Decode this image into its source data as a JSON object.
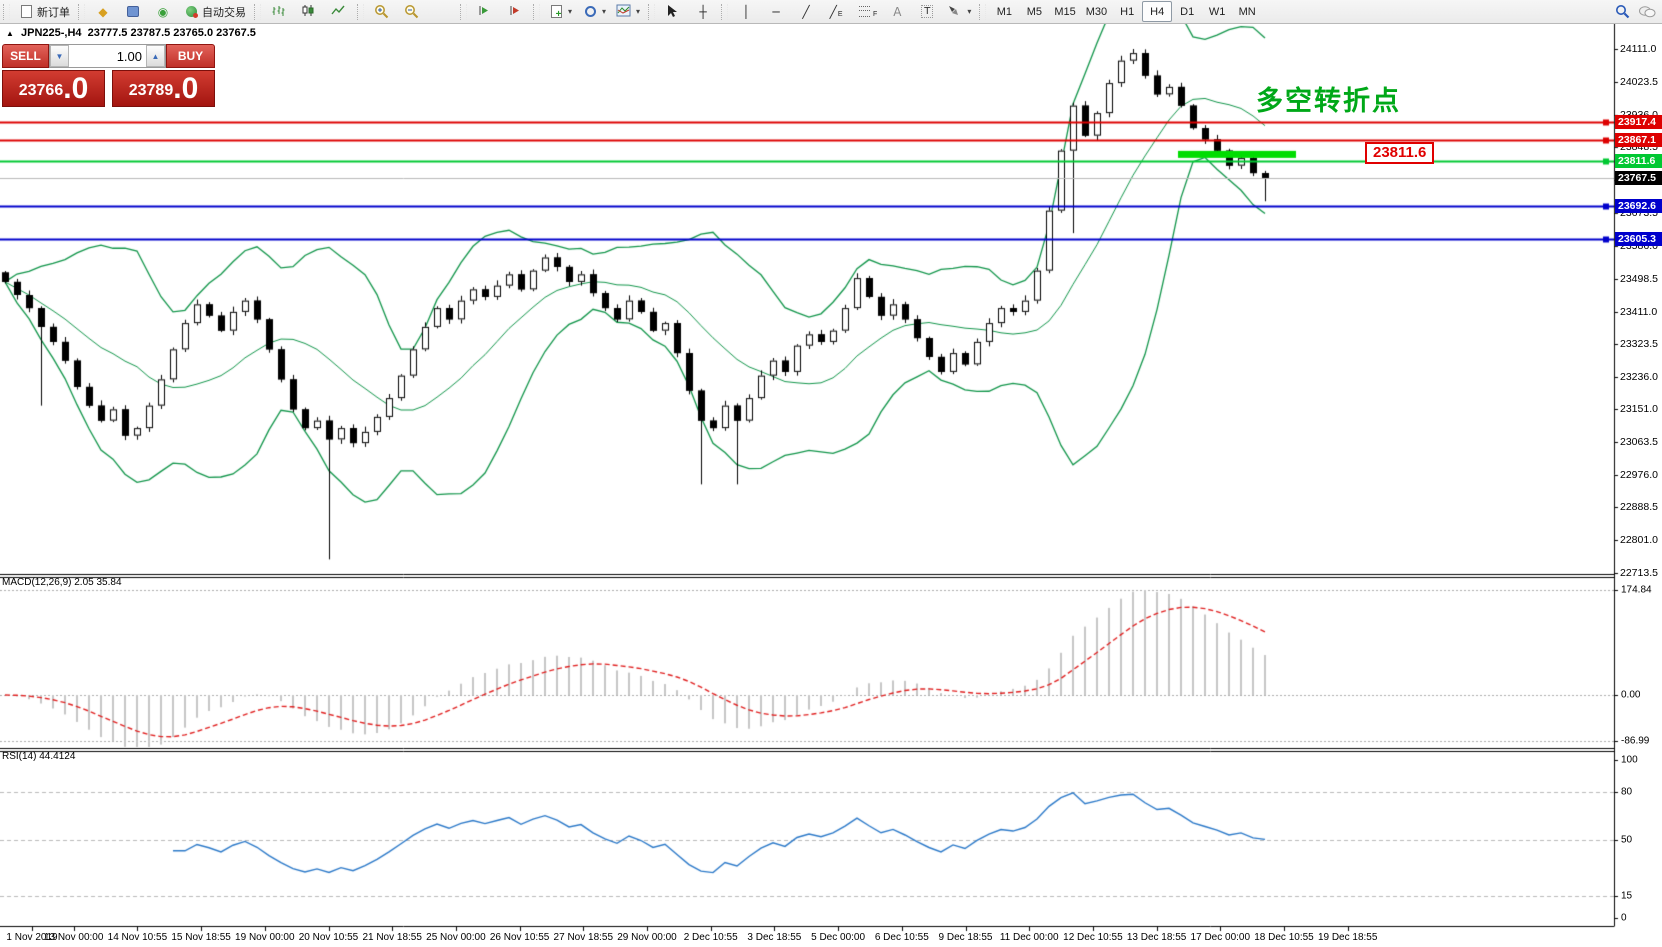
{
  "toolbar": {
    "new_order_label": "新订单",
    "autotrading_label": "自动交易",
    "timeframes": [
      "M1",
      "M5",
      "M15",
      "M30",
      "H1",
      "H4",
      "D1",
      "W1",
      "MN"
    ],
    "active_timeframe": "H4"
  },
  "one_click_panel": {
    "sell_label": "SELL",
    "buy_label": "BUY",
    "volume": "1.00",
    "sell_price_main": "23766",
    "sell_price_pips": ".0",
    "buy_price_main": "23789",
    "buy_price_pips": ".0"
  },
  "chart": {
    "title_symbol": "JPN225-,H4",
    "title_ohlc": "23777.5 23787.5 23765.0 23767.5",
    "annotation_text": "多空转折点",
    "annotation_color": "#00a818",
    "price_callout": "23811.6",
    "macd_label": "MACD(12,26,9) 2.05 35.84",
    "rsi_label": "RSI(14) 44.4124"
  },
  "chart_data": {
    "type": "candlestick",
    "symbol": "JPN225-",
    "timeframe": "H4",
    "current_ohlc": {
      "open": 23777.5,
      "high": 23787.5,
      "low": 23765.0,
      "close": 23767.5
    },
    "closes": [
      23490,
      23455,
      23420,
      23370,
      23330,
      23280,
      23210,
      23160,
      23120,
      23150,
      23080,
      23100,
      23160,
      23230,
      23310,
      23380,
      23430,
      23400,
      23360,
      23410,
      23440,
      23390,
      23310,
      23230,
      23150,
      23100,
      23120,
      23070,
      23100,
      23060,
      23090,
      23130,
      23180,
      23240,
      23310,
      23370,
      23420,
      23390,
      23440,
      23470,
      23450,
      23480,
      23510,
      23470,
      23520,
      23555,
      23530,
      23490,
      23510,
      23460,
      23420,
      23390,
      23440,
      23410,
      23360,
      23380,
      23300,
      23200,
      23120,
      23100,
      23160,
      23120,
      23180,
      23240,
      23280,
      23250,
      23320,
      23350,
      23330,
      23360,
      23420,
      23500,
      23450,
      23400,
      23430,
      23390,
      23340,
      23290,
      23250,
      23300,
      23270,
      23330,
      23380,
      23420,
      23410,
      23440,
      23520,
      23680,
      23840,
      23960,
      23880,
      23940,
      24020,
      24080,
      24100,
      24040,
      23990,
      24010,
      23960,
      23900,
      23870,
      23840,
      23800,
      23820,
      23780,
      23767.5
    ],
    "special_wicks": [
      {
        "i": 3,
        "low": 23160
      },
      {
        "i": 27,
        "low": 22750
      },
      {
        "i": 58,
        "low": 22950
      },
      {
        "i": 61,
        "low": 22950
      },
      {
        "i": 89,
        "low": 23620
      },
      {
        "i": 94,
        "high": 24111
      },
      {
        "i": 105,
        "low": 23705
      }
    ],
    "bollinger_color": "#0f9448",
    "y_axis_labels": [
      "24111.0",
      "24023.5",
      "23936.0",
      "23848.5",
      "23761.0",
      "23673.5",
      "23586.0",
      "23498.5",
      "23411.0",
      "23323.5",
      "23236.0",
      "23151.0",
      "23063.5",
      "22976.0",
      "22888.5",
      "22801.0",
      "22713.5"
    ],
    "x_axis_labels": [
      "1 Nov 2019",
      "13 Nov 00:00",
      "14 Nov 10:55",
      "15 Nov 18:55",
      "19 Nov 00:00",
      "20 Nov 10:55",
      "21 Nov 18:55",
      "25 Nov 00:00",
      "26 Nov 10:55",
      "27 Nov 18:55",
      "29 Nov 00:00",
      "2 Dec 10:55",
      "3 Dec 18:55",
      "5 Dec 00:00",
      "6 Dec 10:55",
      "9 Dec 18:55",
      "11 Dec 00:00",
      "12 Dec 10:55",
      "13 Dec 18:55",
      "17 Dec 00:00",
      "18 Dec 10:55",
      "19 Dec 18:55"
    ],
    "levels": [
      {
        "price": 23917.4,
        "label": "23917.4",
        "color": "#dd0000"
      },
      {
        "price": 23867.1,
        "label": "23867.1",
        "color": "#dd0000"
      },
      {
        "price": 23811.6,
        "label": "23811.6",
        "color": "#00c832"
      },
      {
        "price": 23767.5,
        "label": "23767.5",
        "color": "#000000",
        "current": true
      },
      {
        "price": 23692.6,
        "label": "23692.6",
        "color": "#0000cc"
      },
      {
        "price": 23605.3,
        "label": "23605.3",
        "color": "#0000cc"
      }
    ],
    "highlight_segment": {
      "price": 23830,
      "color": "#00dd00"
    },
    "macd": {
      "params": "12,26,9",
      "main_value": 2.05,
      "signal_value": 35.84,
      "axis_labels": [
        "174.84",
        "0.00",
        "-86.99"
      ],
      "axis_values": [
        174.84,
        0,
        -86.99
      ],
      "histogram_color": "#c6c6c6",
      "signal_color": "#e02020"
    },
    "rsi": {
      "period": 14,
      "value": 44.4124,
      "line_color": "#2a78c8",
      "axis_labels": [
        "100",
        "80",
        "50",
        "15",
        "0"
      ],
      "axis_values": [
        100,
        80,
        50,
        15,
        0
      ],
      "dashed_levels": [
        80,
        50,
        15
      ]
    }
  }
}
